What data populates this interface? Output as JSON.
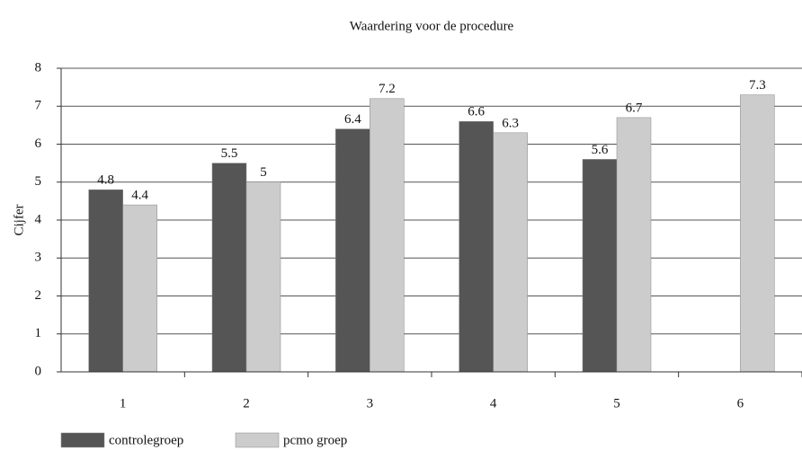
{
  "chart_data": {
    "type": "bar",
    "title": "Waardering voor de procedure",
    "y_label": "Cijfer",
    "categories": [
      "1",
      "2",
      "3",
      "4",
      "5",
      "6"
    ],
    "series": [
      {
        "name": "controlegroep",
        "color": "#555555",
        "values": [
          4.8,
          5.5,
          6.4,
          6.6,
          5.6,
          null
        ]
      },
      {
        "name": "pcmo groep",
        "color": "#cccccc",
        "values": [
          4.4,
          5,
          7.2,
          6.3,
          6.7,
          7.3
        ]
      }
    ],
    "ylim": [
      0,
      8
    ],
    "yticks": [
      0,
      1,
      2,
      3,
      4,
      5,
      6,
      7,
      8
    ],
    "grid": true,
    "legend": "bottom-left"
  }
}
